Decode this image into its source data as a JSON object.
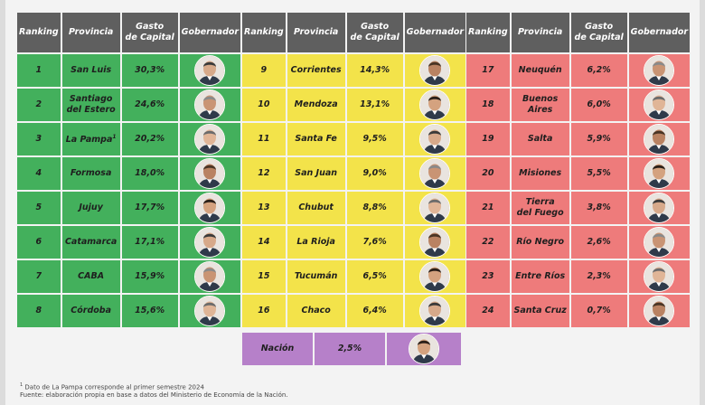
{
  "headers": {
    "rank": "Ranking",
    "prov": "Provincia",
    "gasto": "Gasto\nde Capital",
    "gob": "Gobernador"
  },
  "tables": [
    {
      "rows": [
        {
          "rank": "1",
          "prov": "San Luis",
          "gasto": "30,3%"
        },
        {
          "rank": "2",
          "prov": "Santiago\ndel Estero",
          "gasto": "24,6%"
        },
        {
          "rank": "3",
          "prov": "La Pampa",
          "sup": "1",
          "gasto": "20,2%"
        },
        {
          "rank": "4",
          "prov": "Formosa",
          "gasto": "18,0%"
        },
        {
          "rank": "5",
          "prov": "Jujuy",
          "gasto": "17,7%"
        },
        {
          "rank": "6",
          "prov": "Catamarca",
          "gasto": "17,1%"
        },
        {
          "rank": "7",
          "prov": "CABA",
          "gasto": "15,9%"
        },
        {
          "rank": "8",
          "prov": "Córdoba",
          "gasto": "15,6%"
        }
      ]
    },
    {
      "rows": [
        {
          "rank": "9",
          "prov": "Corrientes",
          "gasto": "14,3%"
        },
        {
          "rank": "10",
          "prov": "Mendoza",
          "gasto": "13,1%"
        },
        {
          "rank": "11",
          "prov": "Santa Fe",
          "gasto": "9,5%"
        },
        {
          "rank": "12",
          "prov": "San Juan",
          "gasto": "9,0%"
        },
        {
          "rank": "13",
          "prov": "Chubut",
          "gasto": "8,8%"
        },
        {
          "rank": "14",
          "prov": "La Rioja",
          "gasto": "7,6%"
        },
        {
          "rank": "15",
          "prov": "Tucumán",
          "gasto": "6,5%"
        },
        {
          "rank": "16",
          "prov": "Chaco",
          "gasto": "6,4%"
        }
      ]
    },
    {
      "rows": [
        {
          "rank": "17",
          "prov": "Neuquén",
          "gasto": "6,2%"
        },
        {
          "rank": "18",
          "prov": "Buenos Aires",
          "gasto": "6,0%"
        },
        {
          "rank": "19",
          "prov": "Salta",
          "gasto": "5,9%"
        },
        {
          "rank": "20",
          "prov": "Misiones",
          "gasto": "5,5%"
        },
        {
          "rank": "21",
          "prov": "Tierra\ndel Fuego",
          "gasto": "3,8%"
        },
        {
          "rank": "22",
          "prov": "Río Negro",
          "gasto": "2,6%"
        },
        {
          "rank": "23",
          "prov": "Entre Ríos",
          "gasto": "2,3%"
        },
        {
          "rank": "24",
          "prov": "Santa Cruz",
          "gasto": "0,7%"
        }
      ]
    }
  ],
  "nacion": {
    "label": "Nación",
    "gasto": "2,5%"
  },
  "footnote": {
    "mark": "1",
    "text": " Dato de La Pampa corresponde al primer semestre 2024"
  },
  "source": "Fuente: elaboración propia en base a datos del Ministerio de Economía de la Nación.",
  "colors": {
    "header": "#5f5f5f",
    "green": "#43b05c",
    "yellow": "#f3e34a",
    "red": "#ee7b7b",
    "nacion": "#b680c9"
  }
}
